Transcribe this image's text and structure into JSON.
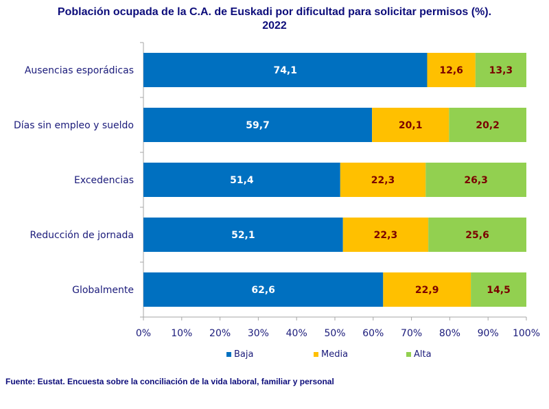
{
  "chart_data": {
    "type": "bar",
    "orientation": "horizontal",
    "stacked": true,
    "title_line1": "Población ocupada de la C.A. de Euskadi por dificultad para solicitar permisos (%).",
    "title_line2": "2022",
    "categories": [
      "Ausencias esporádicas",
      "Días sin empleo y sueldo",
      "Excedencias",
      "Reducción de jornada",
      "Globalmente"
    ],
    "series": [
      {
        "name": "Baja",
        "color": "#0070c0",
        "label_color": "#ffffff",
        "values": [
          74.1,
          59.7,
          51.4,
          52.1,
          62.6
        ]
      },
      {
        "name": "Media",
        "color": "#ffc000",
        "label_color": "#7a0000",
        "values": [
          12.6,
          20.1,
          22.3,
          22.3,
          22.9
        ]
      },
      {
        "name": "Alta",
        "color": "#92d050",
        "label_color": "#7a0000",
        "values": [
          13.3,
          20.2,
          26.3,
          25.6,
          14.5
        ]
      }
    ],
    "value_labels": [
      [
        "74,1",
        "59,7",
        "51,4",
        "52,1",
        "62,6"
      ],
      [
        "12,6",
        "20,1",
        "22,3",
        "22,3",
        "22,9"
      ],
      [
        "13,3",
        "20,2",
        "26,3",
        "25,6",
        "14,5"
      ]
    ],
    "xticks": [
      "0%",
      "10%",
      "20%",
      "30%",
      "40%",
      "50%",
      "60%",
      "70%",
      "80%",
      "90%",
      "100%"
    ],
    "xlim": [
      0,
      100
    ],
    "legend_position": "bottom",
    "grid": false
  },
  "source": "Fuente: Eustat. Encuesta sobre la conciliación de la vida laboral, familiar y personal"
}
